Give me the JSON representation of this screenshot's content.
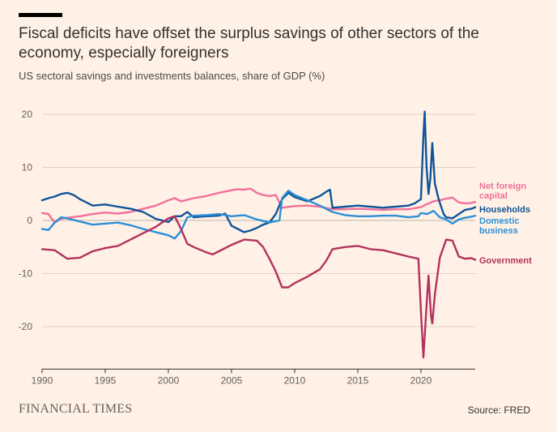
{
  "header": {
    "title": "Fiscal deficits have offset the surplus savings of other sectors of the economy, especially foreigners",
    "subtitle": "US sectoral savings and investments balances, share of GDP (%)"
  },
  "footer": {
    "brand": "FINANCIAL TIMES",
    "source": "Source: FRED"
  },
  "chart_data": {
    "type": "line",
    "title": "Fiscal deficits have offset the surplus savings of other sectors of the economy, especially foreigners",
    "subtitle": "US sectoral savings and investments balances, share of GDP (%)",
    "xlim": [
      1990,
      2024.3
    ],
    "ylim": [
      -28,
      23
    ],
    "x_ticks": [
      1990,
      1995,
      2000,
      2005,
      2010,
      2015,
      2020
    ],
    "y_ticks": [
      20,
      10,
      0,
      -10,
      -20
    ],
    "grid": "horizontal",
    "legend": "direct labels at right end of lines",
    "series": [
      {
        "name": "Net foreign capital",
        "label_lines": [
          "Net foreign",
          "capital"
        ],
        "color": "#F2709C",
        "points": [
          [
            1990,
            1.4
          ],
          [
            1990.5,
            1.2
          ],
          [
            1991,
            -0.4
          ],
          [
            1991.5,
            0.3
          ],
          [
            1992,
            0.5
          ],
          [
            1993,
            0.8
          ],
          [
            1994,
            1.2
          ],
          [
            1995,
            1.5
          ],
          [
            1996,
            1.3
          ],
          [
            1997,
            1.6
          ],
          [
            1998,
            2.2
          ],
          [
            1999,
            2.8
          ],
          [
            2000,
            3.8
          ],
          [
            2000.5,
            4.2
          ],
          [
            2001,
            3.6
          ],
          [
            2002,
            4.2
          ],
          [
            2003,
            4.6
          ],
          [
            2004,
            5.2
          ],
          [
            2005,
            5.7
          ],
          [
            2005.5,
            5.9
          ],
          [
            2006,
            5.8
          ],
          [
            2006.5,
            6.0
          ],
          [
            2007,
            5.2
          ],
          [
            2007.5,
            4.8
          ],
          [
            2008,
            4.6
          ],
          [
            2008.5,
            4.8
          ],
          [
            2009,
            2.4
          ],
          [
            2010,
            2.7
          ],
          [
            2011,
            2.8
          ],
          [
            2012,
            2.6
          ],
          [
            2013,
            2.1
          ],
          [
            2014,
            2.1
          ],
          [
            2015,
            2.2
          ],
          [
            2016,
            2.1
          ],
          [
            2017,
            2.0
          ],
          [
            2018,
            2.1
          ],
          [
            2019,
            2.1
          ],
          [
            2020,
            2.5
          ],
          [
            2020.5,
            3.1
          ],
          [
            2021,
            3.6
          ],
          [
            2021.5,
            3.8
          ],
          [
            2022,
            4.1
          ],
          [
            2022.5,
            4.3
          ],
          [
            2023,
            3.4
          ],
          [
            2023.5,
            3.2
          ],
          [
            2024,
            3.3
          ],
          [
            2024.3,
            3.5
          ]
        ]
      },
      {
        "name": "Households",
        "label_lines": [
          "Households"
        ],
        "color": "#0F5499",
        "points": [
          [
            1990,
            3.8
          ],
          [
            1990.5,
            4.2
          ],
          [
            1991,
            4.5
          ],
          [
            1991.5,
            5.0
          ],
          [
            1992,
            5.2
          ],
          [
            1992.5,
            4.8
          ],
          [
            1993,
            4.0
          ],
          [
            1993.5,
            3.4
          ],
          [
            1994,
            2.8
          ],
          [
            1995,
            3.0
          ],
          [
            1996,
            2.6
          ],
          [
            1997,
            2.2
          ],
          [
            1998,
            1.6
          ],
          [
            1999,
            0.3
          ],
          [
            2000,
            -0.3
          ],
          [
            2000.5,
            0.8
          ],
          [
            2001,
            0.8
          ],
          [
            2001.5,
            1.6
          ],
          [
            2002,
            0.6
          ],
          [
            2003,
            0.8
          ],
          [
            2004,
            0.9
          ],
          [
            2004.5,
            1.3
          ],
          [
            2005,
            -1.0
          ],
          [
            2005.5,
            -1.6
          ],
          [
            2006,
            -2.2
          ],
          [
            2006.5,
            -1.9
          ],
          [
            2007,
            -1.4
          ],
          [
            2007.5,
            -0.8
          ],
          [
            2008,
            -0.4
          ],
          [
            2008.5,
            1.2
          ],
          [
            2009,
            4.0
          ],
          [
            2009.5,
            5.2
          ],
          [
            2010,
            4.4
          ],
          [
            2011,
            3.6
          ],
          [
            2012,
            4.6
          ],
          [
            2012.5,
            5.4
          ],
          [
            2012.8,
            5.8
          ],
          [
            2013,
            2.4
          ],
          [
            2014,
            2.6
          ],
          [
            2015,
            2.8
          ],
          [
            2016,
            2.6
          ],
          [
            2017,
            2.4
          ],
          [
            2018,
            2.6
          ],
          [
            2019,
            2.8
          ],
          [
            2019.5,
            3.2
          ],
          [
            2020,
            4.0
          ],
          [
            2020.2,
            16.0
          ],
          [
            2020.3,
            20.5
          ],
          [
            2020.45,
            10.0
          ],
          [
            2020.6,
            5.0
          ],
          [
            2020.75,
            8.0
          ],
          [
            2020.9,
            14.6
          ],
          [
            2021.1,
            7.0
          ],
          [
            2021.4,
            4.0
          ],
          [
            2021.8,
            1.2
          ],
          [
            2022,
            0.6
          ],
          [
            2022.5,
            0.4
          ],
          [
            2023,
            1.2
          ],
          [
            2023.5,
            2.0
          ],
          [
            2024,
            2.2
          ],
          [
            2024.3,
            2.5
          ]
        ]
      },
      {
        "name": "Domestic business",
        "label_lines": [
          "Domestic",
          "business"
        ],
        "color": "#2C8FD8",
        "points": [
          [
            1990,
            -1.6
          ],
          [
            1990.5,
            -1.8
          ],
          [
            1991,
            -0.4
          ],
          [
            1991.5,
            0.6
          ],
          [
            1992,
            0.4
          ],
          [
            1993,
            -0.2
          ],
          [
            1994,
            -0.8
          ],
          [
            1995,
            -0.6
          ],
          [
            1996,
            -0.4
          ],
          [
            1997,
            -0.9
          ],
          [
            1998,
            -1.6
          ],
          [
            1999,
            -2.2
          ],
          [
            2000,
            -2.8
          ],
          [
            2000.5,
            -3.4
          ],
          [
            2001,
            -2.0
          ],
          [
            2001.5,
            0.6
          ],
          [
            2002,
            0.9
          ],
          [
            2003,
            1.0
          ],
          [
            2004,
            1.2
          ],
          [
            2005,
            0.8
          ],
          [
            2006,
            1.0
          ],
          [
            2007,
            0.2
          ],
          [
            2008,
            -0.4
          ],
          [
            2008.8,
            0.0
          ],
          [
            2009,
            4.2
          ],
          [
            2009.5,
            5.6
          ],
          [
            2010,
            4.8
          ],
          [
            2011,
            3.8
          ],
          [
            2012,
            2.8
          ],
          [
            2013,
            1.6
          ],
          [
            2014,
            1.0
          ],
          [
            2015,
            0.8
          ],
          [
            2016,
            0.8
          ],
          [
            2017,
            0.9
          ],
          [
            2018,
            0.9
          ],
          [
            2019,
            0.6
          ],
          [
            2019.8,
            0.8
          ],
          [
            2020,
            1.4
          ],
          [
            2020.5,
            1.2
          ],
          [
            2021,
            1.8
          ],
          [
            2021.5,
            0.6
          ],
          [
            2022,
            0.2
          ],
          [
            2022.5,
            -0.6
          ],
          [
            2023,
            0.2
          ],
          [
            2023.5,
            0.5
          ],
          [
            2024,
            0.7
          ],
          [
            2024.3,
            0.9
          ]
        ]
      },
      {
        "name": "Government",
        "label_lines": [
          "Government"
        ],
        "color": "#B3325D",
        "points": [
          [
            1990,
            -5.4
          ],
          [
            1991,
            -5.6
          ],
          [
            1992,
            -7.2
          ],
          [
            1993,
            -7.0
          ],
          [
            1994,
            -5.8
          ],
          [
            1995,
            -5.2
          ],
          [
            1996,
            -4.8
          ],
          [
            1997,
            -3.6
          ],
          [
            1998,
            -2.4
          ],
          [
            1999,
            -1.2
          ],
          [
            2000,
            0.4
          ],
          [
            2000.5,
            0.8
          ],
          [
            2001,
            -1.6
          ],
          [
            2001.5,
            -4.4
          ],
          [
            2002,
            -5.0
          ],
          [
            2003,
            -6.0
          ],
          [
            2003.5,
            -6.4
          ],
          [
            2004,
            -5.8
          ],
          [
            2005,
            -4.6
          ],
          [
            2006,
            -3.6
          ],
          [
            2007,
            -3.8
          ],
          [
            2007.5,
            -5.0
          ],
          [
            2008,
            -7.2
          ],
          [
            2008.5,
            -9.6
          ],
          [
            2009,
            -12.6
          ],
          [
            2009.5,
            -12.6
          ],
          [
            2010,
            -11.8
          ],
          [
            2011,
            -10.6
          ],
          [
            2012,
            -9.2
          ],
          [
            2012.5,
            -7.6
          ],
          [
            2013,
            -5.4
          ],
          [
            2014,
            -5.0
          ],
          [
            2015,
            -4.8
          ],
          [
            2016,
            -5.4
          ],
          [
            2017,
            -5.6
          ],
          [
            2018,
            -6.2
          ],
          [
            2019,
            -6.8
          ],
          [
            2019.8,
            -7.2
          ],
          [
            2020,
            -17.0
          ],
          [
            2020.2,
            -25.8
          ],
          [
            2020.45,
            -16.0
          ],
          [
            2020.6,
            -10.4
          ],
          [
            2020.8,
            -18.0
          ],
          [
            2020.9,
            -19.4
          ],
          [
            2021.1,
            -14.0
          ],
          [
            2021.5,
            -7.0
          ],
          [
            2022,
            -3.6
          ],
          [
            2022.5,
            -3.8
          ],
          [
            2023,
            -6.8
          ],
          [
            2023.5,
            -7.2
          ],
          [
            2024,
            -7.1
          ],
          [
            2024.3,
            -7.4
          ]
        ]
      }
    ]
  }
}
